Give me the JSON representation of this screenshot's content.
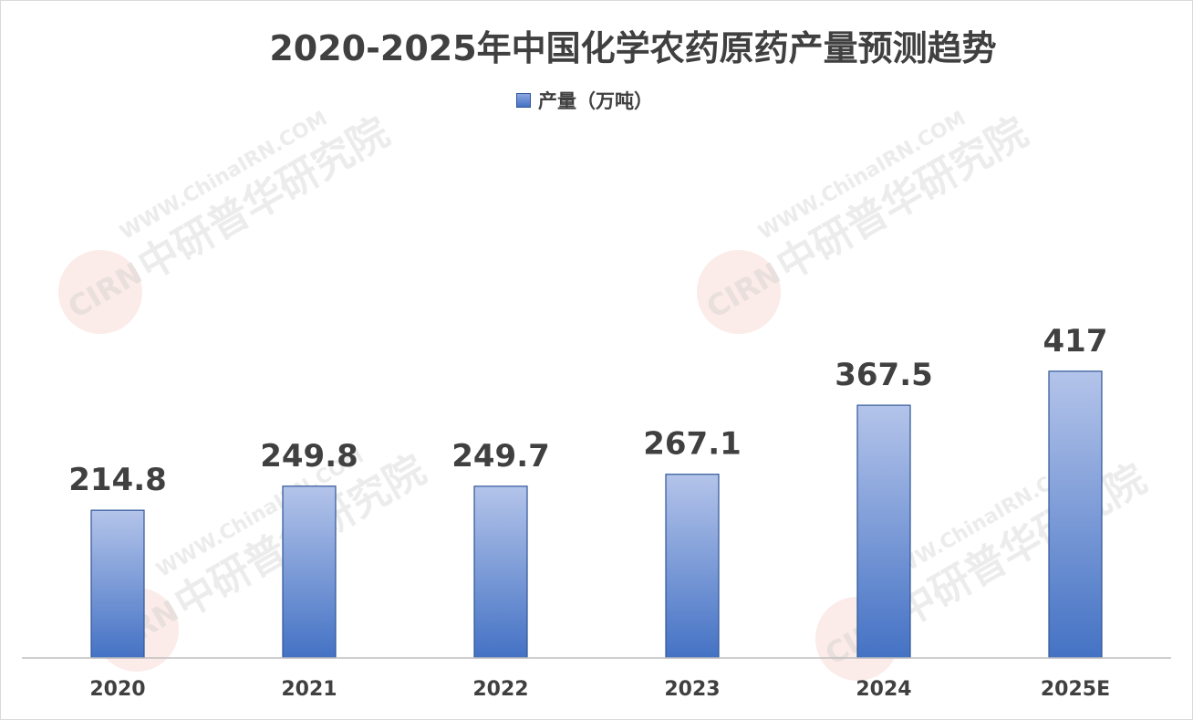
{
  "chart_data": {
    "type": "bar",
    "title": "2020-2025年中国化学农药原药产量预测趋势",
    "categories": [
      "2020",
      "2021",
      "2022",
      "2023",
      "2024",
      "2025E"
    ],
    "series": [
      {
        "name": "产量（万吨）",
        "values": [
          214.8,
          249.8,
          249.7,
          267.1,
          367.5,
          417
        ]
      }
    ],
    "data_labels": [
      "214.8",
      "249.8",
      "249.7",
      "267.1",
      "367.5",
      "417"
    ],
    "ylim": [
      0,
      500
    ],
    "grid": false,
    "legend": "top-center",
    "colors": {
      "bar_top": "#b4c4ea",
      "bar_bottom": "#4472c4",
      "bar_border": "#2f5597",
      "text": "#404040"
    }
  },
  "watermark": {
    "logo_text": "CIRN",
    "cn_text": "中研普华研究院",
    "url_text": "WWW.ChinaIRN.COM"
  }
}
